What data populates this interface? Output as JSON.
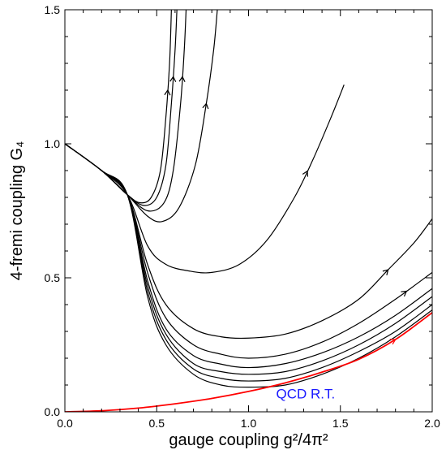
{
  "chart_data": {
    "type": "line",
    "title": "",
    "xlabel": "gauge coupling  g²/4π²",
    "ylabel": "4-fremi coupling G₄",
    "xlim": [
      0.0,
      2.0
    ],
    "ylim": [
      0.0,
      1.5
    ],
    "x_ticks": [
      "0.0",
      "0.5",
      "1.0",
      "1.5",
      "2.0"
    ],
    "y_ticks": [
      "0.0",
      "0.5",
      "1.0",
      "1.5"
    ],
    "grid": false,
    "legend": "none",
    "annotation": {
      "text": "QCD R.T.",
      "color": "#1a1aff",
      "x": 1.15,
      "y": 0.05
    },
    "series": [
      {
        "color": "#000000",
        "arrow_at_x": 0.56,
        "points": [
          [
            0.0,
            1.0
          ],
          [
            0.2,
            0.9
          ],
          [
            0.34,
            0.81
          ],
          [
            0.41,
            0.78
          ],
          [
            0.47,
            0.8
          ],
          [
            0.52,
            0.9
          ],
          [
            0.55,
            1.1
          ],
          [
            0.57,
            1.3
          ],
          [
            0.58,
            1.5
          ]
        ]
      },
      {
        "color": "#000000",
        "arrow_at_x": 0.59,
        "points": [
          [
            0.0,
            1.0
          ],
          [
            0.2,
            0.9
          ],
          [
            0.34,
            0.81
          ],
          [
            0.43,
            0.77
          ],
          [
            0.5,
            0.8
          ],
          [
            0.55,
            0.92
          ],
          [
            0.58,
            1.15
          ],
          [
            0.6,
            1.35
          ],
          [
            0.61,
            1.5
          ]
        ]
      },
      {
        "color": "#000000",
        "arrow_at_x": 0.64,
        "points": [
          [
            0.0,
            1.0
          ],
          [
            0.2,
            0.9
          ],
          [
            0.34,
            0.81
          ],
          [
            0.45,
            0.75
          ],
          [
            0.54,
            0.78
          ],
          [
            0.59,
            0.9
          ],
          [
            0.63,
            1.15
          ],
          [
            0.65,
            1.35
          ],
          [
            0.66,
            1.5
          ]
        ]
      },
      {
        "color": "#000000",
        "arrow_at_x": 0.77,
        "points": [
          [
            0.0,
            1.0
          ],
          [
            0.2,
            0.9
          ],
          [
            0.34,
            0.81
          ],
          [
            0.45,
            0.73
          ],
          [
            0.53,
            0.71
          ],
          [
            0.62,
            0.76
          ],
          [
            0.71,
            0.92
          ],
          [
            0.77,
            1.15
          ],
          [
            0.81,
            1.35
          ],
          [
            0.83,
            1.5
          ]
        ]
      },
      {
        "color": "#000000",
        "arrow_at_x": 1.32,
        "points": [
          [
            0.0,
            1.0
          ],
          [
            0.2,
            0.9
          ],
          [
            0.34,
            0.81
          ],
          [
            0.45,
            0.62
          ],
          [
            0.55,
            0.55
          ],
          [
            0.68,
            0.525
          ],
          [
            0.8,
            0.52
          ],
          [
            0.95,
            0.55
          ],
          [
            1.1,
            0.64
          ],
          [
            1.25,
            0.8
          ],
          [
            1.35,
            0.94
          ],
          [
            1.45,
            1.1
          ],
          [
            1.52,
            1.22
          ]
        ]
      },
      {
        "color": "#000000",
        "arrow_at_x": 1.76,
        "points": [
          [
            0.0,
            1.0
          ],
          [
            0.2,
            0.9
          ],
          [
            0.34,
            0.81
          ],
          [
            0.45,
            0.55
          ],
          [
            0.55,
            0.4
          ],
          [
            0.7,
            0.31
          ],
          [
            0.85,
            0.28
          ],
          [
            1.0,
            0.275
          ],
          [
            1.2,
            0.29
          ],
          [
            1.4,
            0.34
          ],
          [
            1.6,
            0.42
          ],
          [
            1.76,
            0.53
          ],
          [
            1.9,
            0.63
          ],
          [
            2.0,
            0.72
          ]
        ]
      },
      {
        "color": "#000000",
        "arrow_at_x": 1.86,
        "points": [
          [
            0.0,
            1.0
          ],
          [
            0.2,
            0.9
          ],
          [
            0.34,
            0.81
          ],
          [
            0.45,
            0.52
          ],
          [
            0.55,
            0.35
          ],
          [
            0.7,
            0.25
          ],
          [
            0.85,
            0.215
          ],
          [
            1.0,
            0.2
          ],
          [
            1.2,
            0.215
          ],
          [
            1.4,
            0.26
          ],
          [
            1.6,
            0.33
          ],
          [
            1.8,
            0.42
          ],
          [
            2.0,
            0.52
          ]
        ]
      },
      {
        "color": "#000000",
        "points": [
          [
            0.0,
            1.0
          ],
          [
            0.2,
            0.9
          ],
          [
            0.34,
            0.81
          ],
          [
            0.45,
            0.49
          ],
          [
            0.55,
            0.31
          ],
          [
            0.7,
            0.21
          ],
          [
            0.85,
            0.178
          ],
          [
            1.0,
            0.165
          ],
          [
            1.2,
            0.18
          ],
          [
            1.4,
            0.22
          ],
          [
            1.6,
            0.28
          ],
          [
            1.8,
            0.36
          ],
          [
            2.0,
            0.46
          ]
        ]
      },
      {
        "color": "#000000",
        "points": [
          [
            0.0,
            1.0
          ],
          [
            0.2,
            0.9
          ],
          [
            0.34,
            0.81
          ],
          [
            0.45,
            0.47
          ],
          [
            0.55,
            0.29
          ],
          [
            0.7,
            0.18
          ],
          [
            0.85,
            0.15
          ],
          [
            1.0,
            0.14
          ],
          [
            1.2,
            0.15
          ],
          [
            1.4,
            0.19
          ],
          [
            1.6,
            0.25
          ],
          [
            1.8,
            0.33
          ],
          [
            2.0,
            0.43
          ]
        ]
      },
      {
        "color": "#000000",
        "points": [
          [
            0.0,
            1.0
          ],
          [
            0.2,
            0.9
          ],
          [
            0.34,
            0.81
          ],
          [
            0.45,
            0.45
          ],
          [
            0.55,
            0.27
          ],
          [
            0.7,
            0.16
          ],
          [
            0.85,
            0.125
          ],
          [
            1.0,
            0.115
          ],
          [
            1.2,
            0.125
          ],
          [
            1.4,
            0.165
          ],
          [
            1.6,
            0.225
          ],
          [
            1.8,
            0.3
          ],
          [
            2.0,
            0.4
          ]
        ]
      },
      {
        "color": "#000000",
        "points": [
          [
            0.0,
            1.0
          ],
          [
            0.2,
            0.9
          ],
          [
            0.34,
            0.81
          ],
          [
            0.45,
            0.43
          ],
          [
            0.55,
            0.25
          ],
          [
            0.7,
            0.14
          ],
          [
            0.85,
            0.1
          ],
          [
            1.0,
            0.092
          ],
          [
            1.2,
            0.1
          ],
          [
            1.4,
            0.14
          ],
          [
            1.6,
            0.2
          ],
          [
            1.8,
            0.28
          ],
          [
            2.0,
            0.38
          ]
        ]
      },
      {
        "color": "#ff0000",
        "arrow_at_x": 1.8,
        "points": [
          [
            0.0,
            0.0
          ],
          [
            0.2,
            0.004
          ],
          [
            0.4,
            0.014
          ],
          [
            0.6,
            0.03
          ],
          [
            0.8,
            0.05
          ],
          [
            1.0,
            0.076
          ],
          [
            1.2,
            0.108
          ],
          [
            1.4,
            0.148
          ],
          [
            1.6,
            0.196
          ],
          [
            1.8,
            0.27
          ],
          [
            2.0,
            0.37
          ]
        ]
      }
    ]
  }
}
